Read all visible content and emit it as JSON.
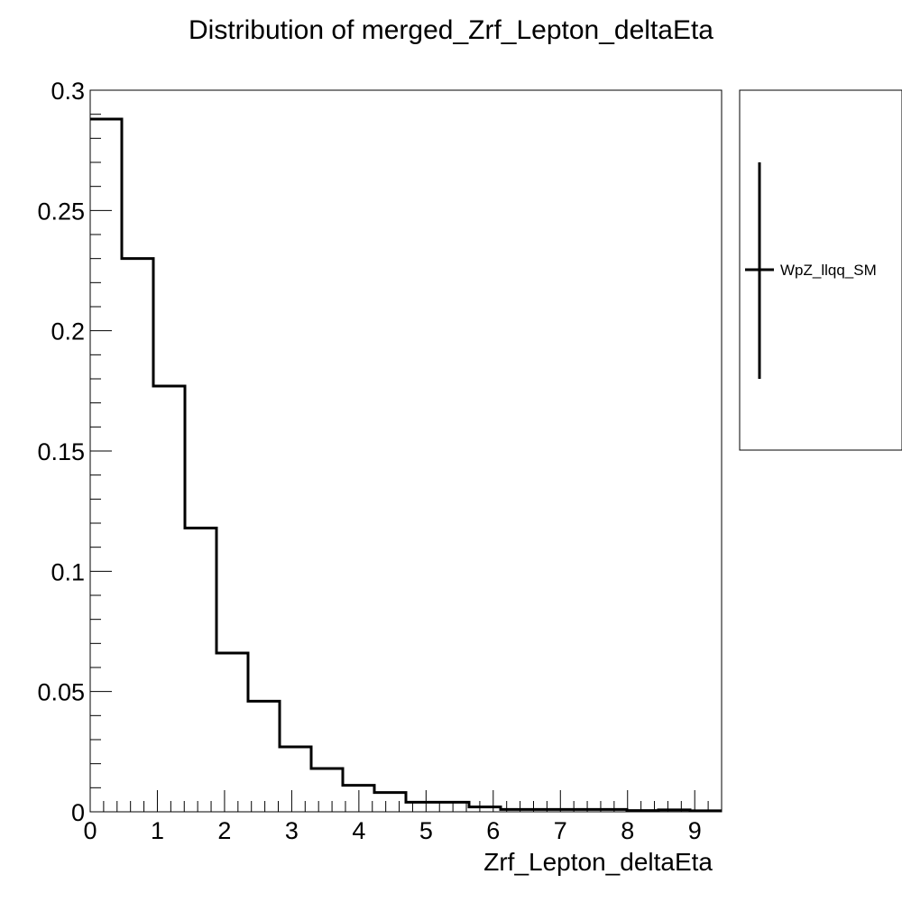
{
  "chart_data": {
    "type": "histogram",
    "title": "Distribution of merged_Zrf_Lepton_deltaEta",
    "xlabel": "Zrf_Lepton_deltaEta",
    "ylabel": "",
    "xlim": [
      0,
      9.4
    ],
    "ylim": [
      0,
      0.3
    ],
    "grid": false,
    "legend_position": "right",
    "x_ticks": [
      0,
      1,
      2,
      3,
      4,
      5,
      6,
      7,
      8,
      9
    ],
    "x_tick_labels": [
      "0",
      "1",
      "2",
      "3",
      "4",
      "5",
      "6",
      "7",
      "8",
      "9"
    ],
    "y_ticks": [
      0,
      0.05,
      0.1,
      0.15,
      0.2,
      0.25,
      0.3
    ],
    "y_tick_labels": [
      "0",
      "0.05",
      "0.1",
      "0.15",
      "0.2",
      "0.25",
      "0.3"
    ],
    "bin_edges": [
      0,
      0.47,
      0.94,
      1.41,
      1.88,
      2.35,
      2.82,
      3.29,
      3.76,
      4.23,
      4.7,
      5.17,
      5.64,
      6.11,
      6.58,
      7.05,
      7.52,
      7.99,
      8.46,
      8.93,
      9.4
    ],
    "series": [
      {
        "name": "WpZ_llqq_SM",
        "color": "#000000",
        "values": [
          0.288,
          0.23,
          0.177,
          0.118,
          0.066,
          0.046,
          0.027,
          0.018,
          0.011,
          0.008,
          0.004,
          0.004,
          0.002,
          0.001,
          0.001,
          0.001,
          0.001,
          0.0005,
          0.0008,
          0.0004
        ]
      }
    ]
  }
}
